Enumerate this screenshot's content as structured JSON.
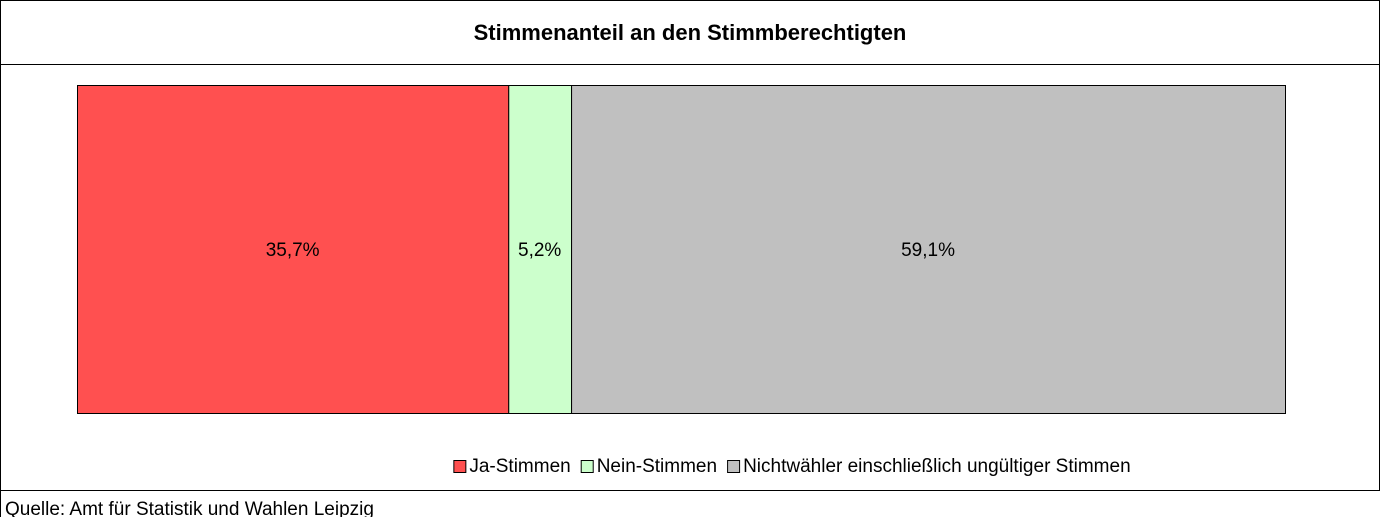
{
  "chart_data": {
    "type": "bar",
    "orientation": "horizontal",
    "stacked": true,
    "title": "Stimmenanteil an den Stimmberechtigten",
    "categories": [
      null
    ],
    "series": [
      {
        "name": "Ja-Stimmen",
        "color": "#ff5050",
        "values": [
          35.7
        ],
        "value_labels": [
          "35,7%"
        ]
      },
      {
        "name": "Nein-Stimmen",
        "color": "#ccffcc",
        "values": [
          5.2
        ],
        "value_labels": [
          "5,2%"
        ]
      },
      {
        "name": "Nichtwähler einschließlich ungültiger Stimmen",
        "color": "#c0c0c0",
        "values": [
          59.1
        ],
        "value_labels": [
          "59,1%"
        ]
      }
    ],
    "legend": "bottom",
    "source": "Quelle: Amt für Statistik und Wahlen Leipzig"
  }
}
